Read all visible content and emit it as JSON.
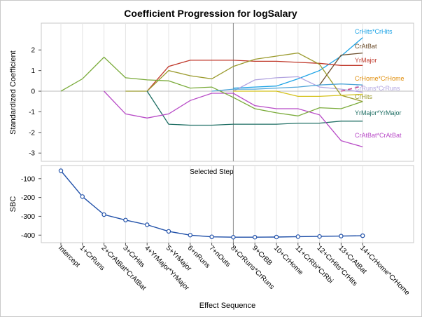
{
  "chart_data": [
    {
      "type": "line",
      "title": "Coefficient Progression for logSalary",
      "ylabel": "Standardized Coefficient",
      "ylim": [
        -3.4,
        3.3
      ],
      "yticks": [
        2,
        1,
        0,
        -1,
        -2,
        -3
      ],
      "grid": "vertical",
      "selected_step": 8,
      "series": [
        {
          "name": "CrHits*CrHits",
          "color": "#1ca3e6",
          "dashed": false,
          "values": [
            null,
            null,
            null,
            null,
            null,
            null,
            null,
            null,
            0.15,
            0.2,
            0.25,
            0.6,
            1.0,
            1.7,
            2.6
          ]
        },
        {
          "name": "CrAtBat",
          "color": "#6b4c2a",
          "dashed": false,
          "values": [
            null,
            null,
            null,
            null,
            null,
            null,
            null,
            null,
            null,
            null,
            null,
            null,
            0.3,
            1.75,
            1.85
          ]
        },
        {
          "name": "YrMajor",
          "color": "#c0392b",
          "dashed": false,
          "values": [
            null,
            null,
            null,
            null,
            0.0,
            1.2,
            1.5,
            1.5,
            1.5,
            1.45,
            1.45,
            1.4,
            1.35,
            1.25,
            1.25
          ]
        },
        {
          "name": "CrHome*CrHome",
          "color": "#e08e0b",
          "dashed": true,
          "values": [
            null,
            null,
            null,
            null,
            null,
            null,
            null,
            null,
            null,
            null,
            null,
            null,
            null,
            null,
            0.25
          ]
        },
        {
          "name": "CrRuns*CrRuns",
          "color": "#b2a4e0",
          "dashed": false,
          "values": [
            null,
            null,
            null,
            null,
            null,
            null,
            null,
            null,
            0.0,
            0.55,
            0.65,
            0.7,
            0.2,
            0.1,
            -0.05
          ]
        },
        {
          "name": "CrHits",
          "color": "#9b9b2e",
          "dashed": false,
          "values": [
            null,
            null,
            null,
            0.0,
            0.0,
            1.0,
            0.75,
            0.6,
            1.2,
            1.55,
            1.7,
            1.85,
            1.3,
            -0.2,
            -0.5
          ]
        },
        {
          "name": "YrMajor*YrMajor",
          "color": "#1f6f64",
          "dashed": false,
          "values": [
            null,
            null,
            null,
            null,
            0.0,
            -1.6,
            -1.65,
            -1.65,
            -1.6,
            -1.6,
            -1.6,
            -1.55,
            -1.55,
            -1.45,
            -1.45
          ]
        },
        {
          "name": "CrAtBat*CrAtBat",
          "color": "#b84bc7",
          "dashed": false,
          "values": [
            null,
            null,
            0.0,
            -1.1,
            -1.3,
            -1.1,
            -0.45,
            -0.1,
            -0.1,
            -0.7,
            -0.85,
            -0.85,
            -1.15,
            -2.4,
            -2.7
          ]
        },
        {
          "name": "",
          "color": "#7aab3a",
          "dashed": false,
          "values": [
            0.0,
            0.6,
            1.65,
            0.65,
            0.55,
            0.5,
            0.15,
            0.2,
            -0.3,
            -0.85,
            -1.05,
            -1.2,
            -0.8,
            -0.85,
            -0.5
          ]
        },
        {
          "name": "",
          "color": "#d4c11a",
          "dashed": false,
          "values": [
            null,
            null,
            null,
            null,
            null,
            null,
            null,
            null,
            0.0,
            0.0,
            0.0,
            -0.25,
            -0.25,
            -0.2,
            -0.15
          ]
        },
        {
          "name": "",
          "color": "#4fa5d8",
          "dashed": false,
          "values": [
            null,
            null,
            null,
            null,
            null,
            null,
            null,
            0.0,
            0.1,
            0.1,
            0.15,
            0.2,
            0.3,
            0.35,
            0.3
          ]
        },
        {
          "name": "",
          "color": "#c94c8f",
          "dashed": true,
          "values": [
            null,
            null,
            null,
            null,
            null,
            null,
            null,
            null,
            null,
            null,
            null,
            null,
            null,
            0.0,
            0.25
          ]
        }
      ]
    },
    {
      "type": "line",
      "ylabel": "SBC",
      "xlabel": "Effect Sequence",
      "ylim": [
        -440,
        -30
      ],
      "yticks": [
        -100,
        -200,
        -300,
        -400
      ],
      "annotation": "Selected Step",
      "color": "#1f4fa8",
      "categories": [
        "Intercept",
        "1+CrRuns",
        "2+CrAtBat*CrAtBat",
        "3+CrHits",
        "4+YrMajor*YrMajor",
        "5+YrMajor",
        "6+nRuns",
        "7+nOuts",
        "8+CrRuns*CrRuns",
        "9+CrBB",
        "10+CrHome",
        "11+CrRbi*CrRbi",
        "12+CrHits*CrHits",
        "13+CrAtBat",
        "14+CrHome*CrHome"
      ],
      "values": [
        -58,
        -195,
        -291,
        -320,
        -345,
        -380,
        -400,
        -409,
        -411,
        -411,
        -410,
        -408,
        -407,
        -405,
        -403
      ]
    }
  ]
}
